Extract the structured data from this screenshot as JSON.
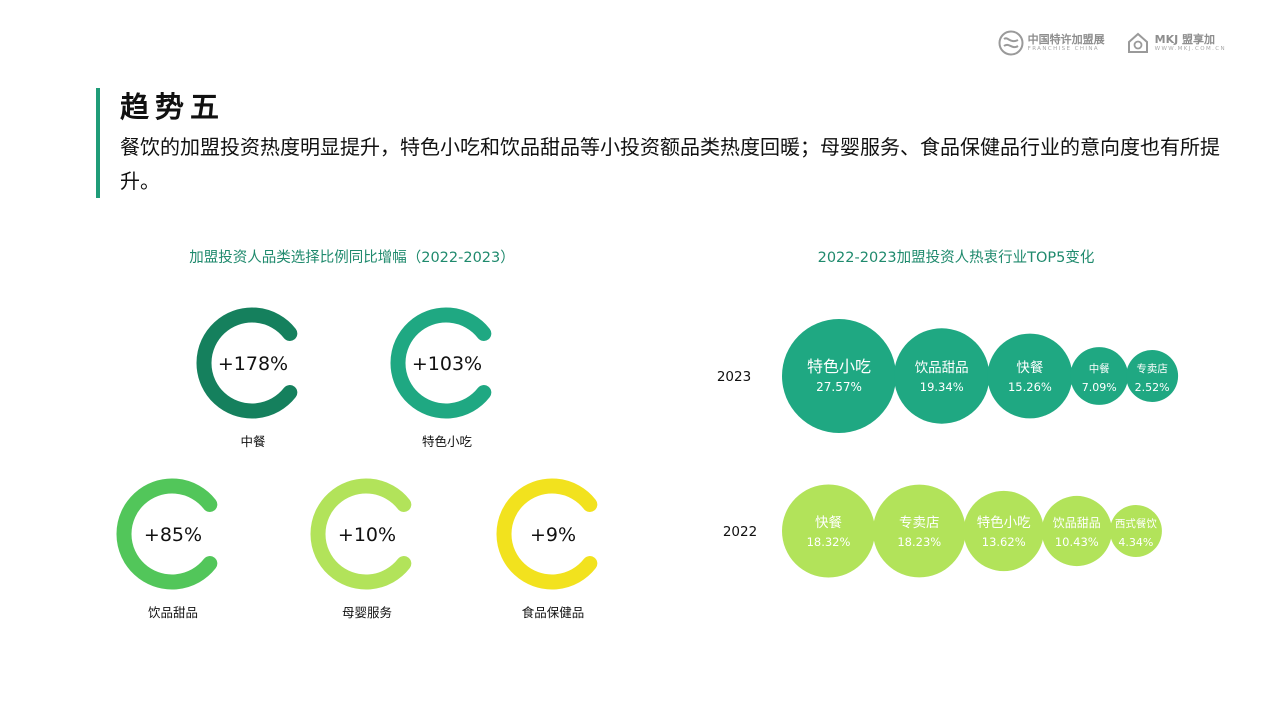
{
  "logos": {
    "franchise_china": {
      "name": "中国特许加盟展",
      "sub": "FRANCHISE CHINA"
    },
    "mkj": {
      "name": "MKJ 盟享加",
      "sub": "WWW.MKJ.COM.CN"
    }
  },
  "heading": "趋势五",
  "description": "餐饮的加盟投资热度明显提升，特色小吃和饮品甜品等小投资额品类热度回暖；母婴服务、食品保健品行业的意向度也有所提升。",
  "chart_data": [
    {
      "type": "radial",
      "title": "加盟投资人品类选择比例同比增幅（2022-2023）",
      "categories": [
        "中餐",
        "特色小吃",
        "饮品甜品",
        "母婴服务",
        "食品保健品"
      ],
      "values": [
        178,
        103,
        85,
        10,
        9
      ],
      "labels": [
        "+178%",
        "+103%",
        "+85%",
        "+10%",
        "+9%"
      ],
      "unit": "%",
      "colors": [
        "#15805d",
        "#1fa882",
        "#52c65a",
        "#b2e35a",
        "#f2e21e"
      ]
    },
    {
      "type": "bubble",
      "title": "2022-2023加盟投资人热衷行业TOP5变化",
      "series": [
        {
          "name": "2023",
          "color": "#1fa882",
          "categories": [
            "特色小吃",
            "饮品甜品",
            "快餐",
            "中餐",
            "专卖店"
          ],
          "values": [
            27.57,
            19.34,
            15.26,
            7.09,
            2.52
          ],
          "labels": [
            "27.57%",
            "19.34%",
            "15.26%",
            "7.09%",
            "2.52%"
          ]
        },
        {
          "name": "2022",
          "color": "#b2e35a",
          "categories": [
            "快餐",
            "专卖店",
            "特色小吃",
            "饮品甜品",
            "西式餐饮"
          ],
          "values": [
            18.32,
            18.23,
            13.62,
            10.43,
            4.34
          ],
          "labels": [
            "18.32%",
            "18.23%",
            "13.62%",
            "10.43%",
            "4.34%"
          ]
        }
      ]
    }
  ]
}
